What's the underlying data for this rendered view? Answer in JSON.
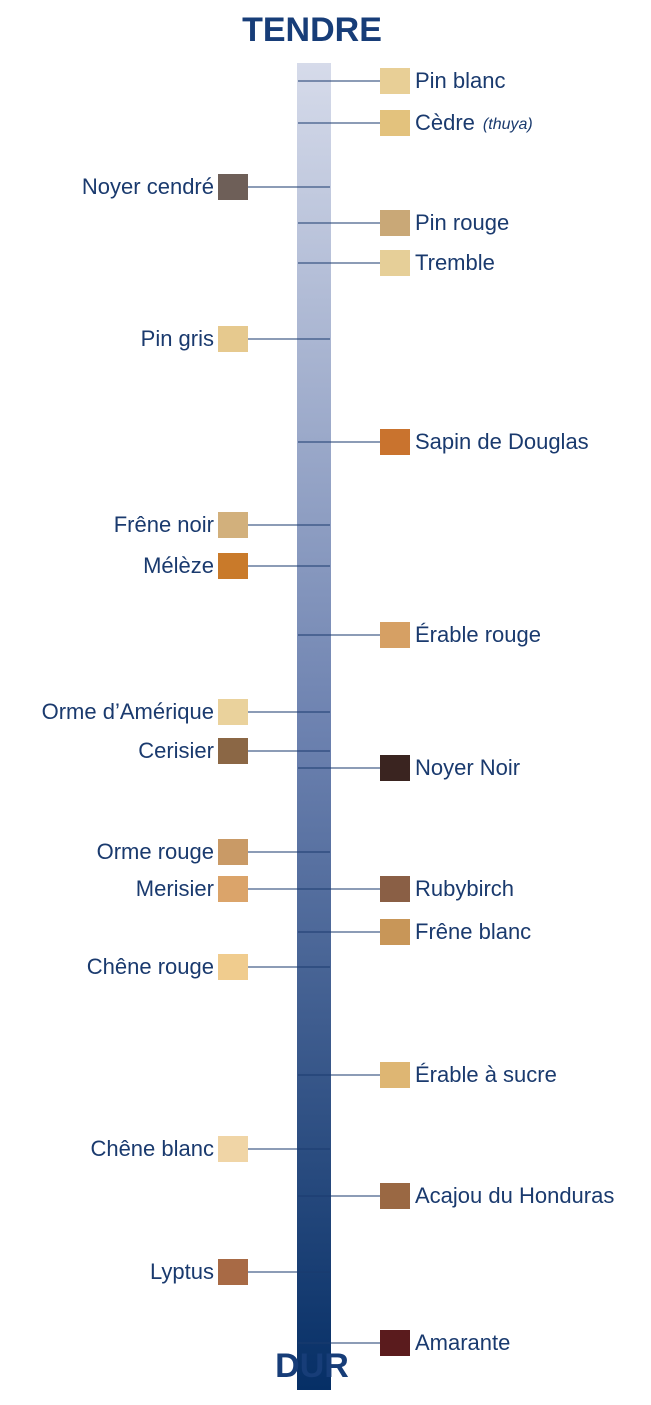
{
  "header": {
    "top": "TENDRE",
    "bottom": "DUR"
  },
  "items": [
    {
      "label": "Pin blanc"
    },
    {
      "label": "Cèdre",
      "note": "(thuya)"
    },
    {
      "label": "Noyer cendré"
    },
    {
      "label": "Pin rouge"
    },
    {
      "label": "Tremble"
    },
    {
      "label": "Pin gris"
    },
    {
      "label": "Sapin de Douglas"
    },
    {
      "label": "Frêne noir"
    },
    {
      "label": "Mélèze"
    },
    {
      "label": "Érable rouge"
    },
    {
      "label": "Orme d’Amérique"
    },
    {
      "label": "Cerisier"
    },
    {
      "label": "Noyer Noir"
    },
    {
      "label": "Orme rouge"
    },
    {
      "label": "Merisier"
    },
    {
      "label": "Rubybirch"
    },
    {
      "label": "Frêne blanc"
    },
    {
      "label": "Chêne rouge"
    },
    {
      "label": "Érable à sucre"
    },
    {
      "label": "Chêne blanc"
    },
    {
      "label": "Acajou du Honduras"
    },
    {
      "label": "Lyptus"
    },
    {
      "label": "Amarante"
    }
  ]
}
